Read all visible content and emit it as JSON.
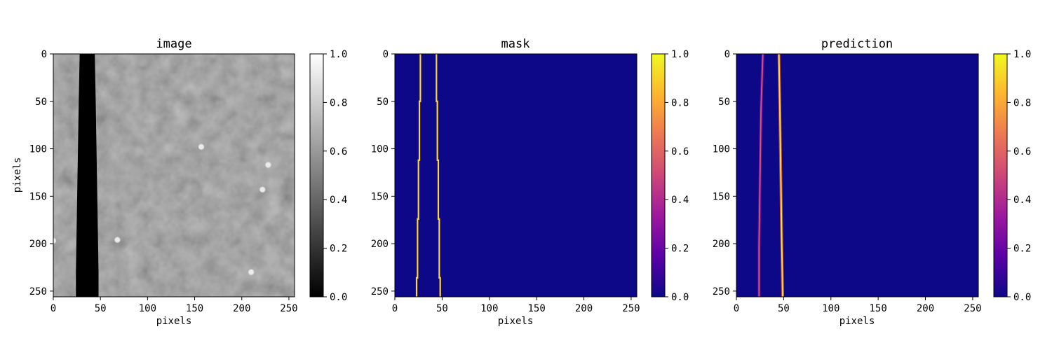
{
  "chart_data": [
    {
      "type": "heatmap",
      "title": "image",
      "xlabel": "pixels",
      "ylabel": "pixels",
      "colormap": "gray",
      "xlim": [
        0,
        256
      ],
      "ylim": [
        256,
        0
      ],
      "x_ticks": [
        "0",
        "50",
        "100",
        "150",
        "200",
        "250"
      ],
      "y_ticks": [
        "0",
        "50",
        "100",
        "150",
        "200",
        "250"
      ],
      "colorbar": {
        "range": [
          0.0,
          1.0
        ],
        "ticks": [
          "0.0",
          "0.2",
          "0.4",
          "0.6",
          "0.8",
          "1.0"
        ]
      },
      "background_level": 0.55,
      "dark_band": {
        "value": 0.0,
        "left_edge": [
          [
            0,
            28
          ],
          [
            50,
            27
          ],
          [
            110,
            26
          ],
          [
            170,
            25
          ],
          [
            230,
            24
          ],
          [
            256,
            24
          ]
        ],
        "right_edge": [
          [
            0,
            44
          ],
          [
            50,
            45
          ],
          [
            110,
            46
          ],
          [
            170,
            47
          ],
          [
            230,
            48
          ],
          [
            256,
            48
          ]
        ]
      },
      "bright_spots": [
        [
          0,
          197
        ],
        [
          68,
          196
        ],
        [
          228,
          117
        ],
        [
          222,
          143
        ],
        [
          210,
          230
        ],
        [
          157,
          98
        ]
      ]
    },
    {
      "type": "heatmap",
      "title": "mask",
      "xlabel": "pixels",
      "ylabel": "",
      "colormap": "plasma",
      "xlim": [
        0,
        256
      ],
      "ylim": [
        256,
        0
      ],
      "x_ticks": [
        "0",
        "50",
        "100",
        "150",
        "200",
        "250"
      ],
      "y_ticks": [
        "0",
        "50",
        "100",
        "150",
        "200",
        "250"
      ],
      "colorbar": {
        "range": [
          0.0,
          1.0
        ],
        "ticks": [
          "0.0",
          "0.2",
          "0.4",
          "0.6",
          "0.8",
          "1.0"
        ]
      },
      "background_value": 0.0,
      "lines": [
        {
          "value": 1.0,
          "segments": [
            [
              0,
              50,
              27
            ],
            [
              50,
              112,
              26
            ],
            [
              112,
              174,
              25
            ],
            [
              174,
              236,
              24
            ],
            [
              236,
              256,
              23
            ]
          ]
        },
        {
          "value": 1.0,
          "segments": [
            [
              0,
              50,
              44
            ],
            [
              50,
              112,
              45
            ],
            [
              112,
              174,
              46
            ],
            [
              174,
              236,
              47
            ],
            [
              236,
              256,
              48
            ]
          ]
        }
      ]
    },
    {
      "type": "heatmap",
      "title": "prediction",
      "xlabel": "pixels",
      "ylabel": "",
      "colormap": "plasma",
      "xlim": [
        0,
        256
      ],
      "ylim": [
        256,
        0
      ],
      "x_ticks": [
        "0",
        "50",
        "100",
        "150",
        "200",
        "250"
      ],
      "y_ticks": [
        "0",
        "50",
        "100",
        "150",
        "200",
        "250"
      ],
      "colorbar": {
        "range": [
          0.0,
          1.0
        ],
        "ticks": [
          "0.0",
          "0.2",
          "0.4",
          "0.6",
          "0.8",
          "1.0"
        ]
      },
      "background_value": 0.0,
      "lines": [
        {
          "points": [
            [
              0,
              28
            ],
            [
              60,
              26
            ],
            [
              130,
              25
            ],
            [
              200,
              24
            ],
            [
              256,
              24
            ]
          ],
          "value": 0.45
        },
        {
          "points": [
            [
              0,
              45
            ],
            [
              60,
              46
            ],
            [
              130,
              47
            ],
            [
              200,
              48
            ],
            [
              256,
              49
            ]
          ],
          "value": 0.95
        }
      ]
    }
  ],
  "colors": {
    "gray_low": "#000000",
    "gray_high": "#ffffff",
    "plasma_stops": [
      "#0d0887",
      "#5c01a6",
      "#9c179e",
      "#cc4778",
      "#ed7953",
      "#fdb42f",
      "#f0f921"
    ]
  }
}
